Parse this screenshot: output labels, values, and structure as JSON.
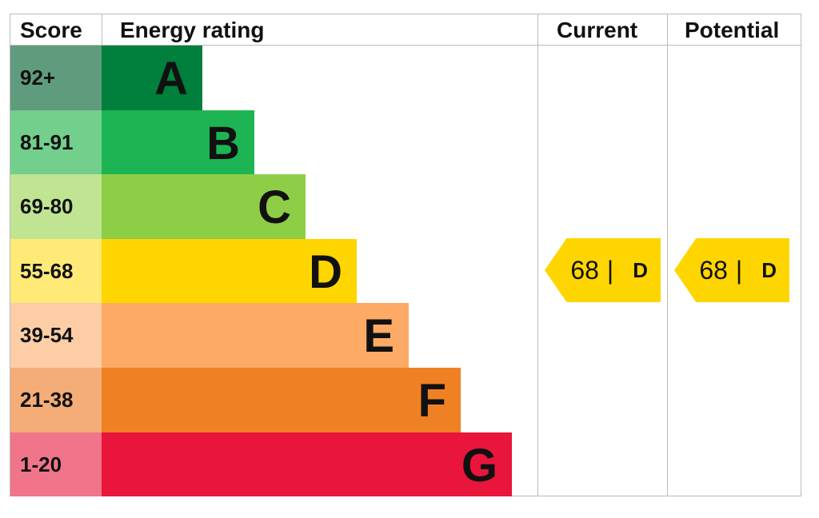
{
  "header": {
    "score": "Score",
    "rating": "Energy rating",
    "current": "Current",
    "potential": "Potential"
  },
  "chart_data": {
    "type": "table",
    "bands": [
      {
        "letter": "A",
        "range": "92+",
        "color": "#007f3d",
        "light": "#5e9c7d"
      },
      {
        "letter": "B",
        "range": "81-91",
        "color": "#1db454",
        "light": "#72cf8c"
      },
      {
        "letter": "C",
        "range": "69-80",
        "color": "#8dce46",
        "light": "#c0e492"
      },
      {
        "letter": "D",
        "range": "55-68",
        "color": "#ffd500",
        "light": "#ffe977"
      },
      {
        "letter": "E",
        "range": "39-54",
        "color": "#fcaa65",
        "light": "#fdcda6"
      },
      {
        "letter": "F",
        "range": "21-38",
        "color": "#ef8023",
        "light": "#f4ad77"
      },
      {
        "letter": "G",
        "range": "1-20",
        "color": "#e9153b",
        "light": "#f0758a"
      }
    ],
    "current": {
      "score": "68",
      "sep": "|",
      "letter": "D"
    },
    "potential": {
      "score": "68",
      "sep": "|",
      "letter": "D"
    }
  }
}
